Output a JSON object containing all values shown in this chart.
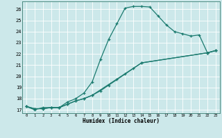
{
  "xlabel": "Humidex (Indice chaleur)",
  "line_color": "#1a7a6e",
  "bg_color": "#cce8ea",
  "grid_color": "#ffffff",
  "xlim": [
    -0.5,
    23.5
  ],
  "ylim": [
    16.7,
    26.7
  ],
  "yticks": [
    17,
    18,
    19,
    20,
    21,
    22,
    23,
    24,
    25,
    26
  ],
  "xticks": [
    0,
    1,
    2,
    3,
    4,
    5,
    6,
    7,
    8,
    9,
    10,
    11,
    12,
    13,
    14,
    15,
    16,
    17,
    18,
    19,
    20,
    21,
    22,
    23
  ],
  "line1_x": [
    0,
    1,
    2,
    3,
    4,
    5,
    6,
    7,
    8,
    9,
    10,
    11,
    12,
    13,
    14,
    15,
    16,
    17,
    18,
    19,
    20,
    21,
    22,
    23
  ],
  "line1_y": [
    17.3,
    17.0,
    17.2,
    17.2,
    17.2,
    17.7,
    18.0,
    18.5,
    19.5,
    21.5,
    23.3,
    24.7,
    26.1,
    26.25,
    26.25,
    26.2,
    25.4,
    24.6,
    24.0,
    23.8,
    23.6,
    23.7,
    22.1,
    22.3
  ],
  "line2_x": [
    0,
    1,
    2,
    3,
    4,
    5,
    6,
    7,
    8,
    9,
    10,
    11,
    12,
    13,
    14,
    22,
    23
  ],
  "line2_y": [
    17.3,
    17.1,
    17.1,
    17.2,
    17.2,
    17.5,
    17.8,
    18.0,
    18.3,
    18.7,
    19.2,
    19.7,
    20.2,
    20.7,
    21.2,
    22.1,
    22.3
  ],
  "line3_x": [
    0,
    1,
    2,
    3,
    4,
    5,
    6,
    7,
    8,
    14,
    22,
    23
  ],
  "line3_y": [
    17.3,
    17.1,
    17.1,
    17.2,
    17.2,
    17.5,
    17.8,
    18.0,
    18.3,
    21.2,
    22.1,
    22.3
  ]
}
